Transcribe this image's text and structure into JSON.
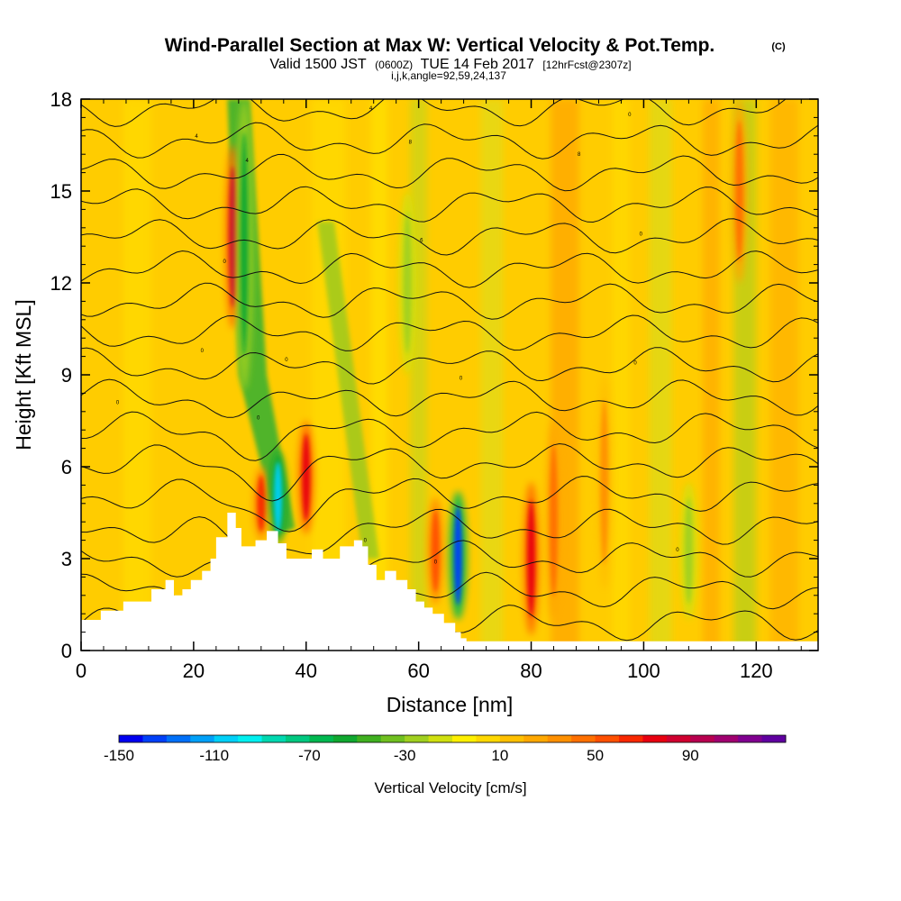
{
  "chart_data": {
    "type": "heatmap",
    "title": "Wind-Parallel Section at Max W: Vertical Velocity & Pot.Temp.",
    "copyright_mark": "(C)",
    "subtitle": {
      "valid_pre": "Valid 1500 JST",
      "valid_utc": "(0600Z)",
      "valid_post": "TUE 14 Feb 2017",
      "forecast": "[12hrFcst@2307z]"
    },
    "indices": "i,j,k,angle=92,59,24,137",
    "xlabel": "Distance [nm]",
    "ylabel": "Height [Kft MSL]",
    "xlim": [
      0,
      131
    ],
    "ylim": [
      0,
      18
    ],
    "xticks": [
      0,
      20,
      40,
      60,
      80,
      100,
      120
    ],
    "xtick_labels": [
      "0",
      "20",
      "40",
      "60",
      "80",
      "100",
      "120"
    ],
    "yticks": [
      0,
      3,
      6,
      9,
      12,
      15,
      18
    ],
    "ytick_labels": [
      "0",
      "3",
      "6",
      "9",
      "12",
      "15",
      "18"
    ],
    "colorbar": {
      "label": "Vertical Velocity [cm/s]",
      "range": [
        -150,
        130
      ],
      "step": 10,
      "tick_labels": [
        "-150",
        "-110",
        "-70",
        "-30",
        "10",
        "50",
        "90"
      ],
      "colors": [
        "#0000f0",
        "#0040f8",
        "#0070f8",
        "#00a0f8",
        "#00d0f8",
        "#00f0f0",
        "#00d8b0",
        "#00c880",
        "#00b850",
        "#10a830",
        "#40b020",
        "#70c020",
        "#a0d020",
        "#d0e010",
        "#fff000",
        "#ffd800",
        "#ffc000",
        "#ffa800",
        "#ff9000",
        "#ff7000",
        "#ff5000",
        "#f82800",
        "#e80010",
        "#d00030",
        "#b80050",
        "#a00070",
        "#800090",
        "#6000a0"
      ]
    },
    "grid": false,
    "legend": "none",
    "terrain_profile": {
      "x": [
        0,
        3.5,
        7.5,
        12.5,
        15,
        16.5,
        18,
        19.5,
        21.5,
        23,
        24,
        26,
        27.5,
        28.5,
        31,
        33,
        35,
        36.5,
        38.5,
        41,
        43,
        46,
        48.5,
        50,
        51,
        52.5,
        54,
        56,
        58,
        59.5,
        61,
        62.5,
        64.5,
        66.5,
        67.5,
        68.5,
        131
      ],
      "height_kft": [
        1.0,
        1.3,
        1.6,
        2.0,
        2.3,
        1.8,
        2.0,
        2.3,
        2.6,
        3.0,
        3.7,
        4.5,
        4.0,
        3.4,
        3.6,
        3.9,
        3.5,
        3.0,
        3.0,
        3.3,
        3.0,
        3.4,
        3.6,
        3.4,
        2.8,
        2.3,
        2.6,
        2.3,
        2.0,
        1.6,
        1.4,
        1.2,
        0.9,
        0.6,
        0.4,
        0.3,
        0.3
      ]
    },
    "updraft_cores": [
      {
        "x": 27,
        "ytop": 16.5,
        "ybot": 10.5,
        "w": 80
      },
      {
        "x": 40,
        "ytop": 7.5,
        "ybot": 3.8,
        "w": 70
      },
      {
        "x": 32,
        "ytop": 6.0,
        "ybot": 3.6,
        "w": 60
      },
      {
        "x": 80,
        "ytop": 5.5,
        "ybot": 0.5,
        "w": 70
      },
      {
        "x": 84,
        "ytop": 7.5,
        "ybot": 1.0,
        "w": 45
      },
      {
        "x": 63,
        "ytop": 5.0,
        "ybot": 1.5,
        "w": 50
      },
      {
        "x": 117,
        "ytop": 18,
        "ybot": 12,
        "w": 40
      },
      {
        "x": 93,
        "ytop": 9,
        "ybot": 2,
        "w": 30
      }
    ],
    "downdraft_cores": [
      {
        "x": 35,
        "ytop": 6.5,
        "ybot": 3.5,
        "w": -110
      },
      {
        "x": 67,
        "ytop": 5.2,
        "ybot": 1.0,
        "w": -140
      },
      {
        "x": 29,
        "ytop": 18,
        "ybot": 8.5,
        "w": -60
      },
      {
        "x": 58,
        "ytop": 15,
        "ybot": 9,
        "w": -30
      },
      {
        "x": 108,
        "ytop": 5.5,
        "ybot": 1.0,
        "w": -25
      }
    ],
    "theta_contours": {
      "label_positions": [
        {
          "x": 21.5,
          "y": 9.8,
          "label": "0"
        },
        {
          "x": 6.5,
          "y": 8.1,
          "label": "0"
        },
        {
          "x": 36.5,
          "y": 9.5,
          "label": "0"
        },
        {
          "x": 31.5,
          "y": 7.6,
          "label": "0"
        },
        {
          "x": 25.5,
          "y": 12.7,
          "label": "0"
        },
        {
          "x": 20.5,
          "y": 16.8,
          "label": "4"
        },
        {
          "x": 29.5,
          "y": 16.0,
          "label": "4"
        },
        {
          "x": 51.5,
          "y": 17.7,
          "label": "4"
        },
        {
          "x": 58.5,
          "y": 16.6,
          "label": "8"
        },
        {
          "x": 60.5,
          "y": 13.4,
          "label": "6"
        },
        {
          "x": 88.5,
          "y": 16.2,
          "label": "8"
        },
        {
          "x": 97.5,
          "y": 17.5,
          "label": "0"
        },
        {
          "x": 99.5,
          "y": 13.6,
          "label": "0"
        },
        {
          "x": 98.5,
          "y": 9.4,
          "label": "0"
        },
        {
          "x": 67.5,
          "y": 8.9,
          "label": "0"
        },
        {
          "x": 50.5,
          "y": 3.6,
          "label": "0"
        },
        {
          "x": 63,
          "y": 2.9,
          "label": "0"
        },
        {
          "x": 106,
          "y": 3.3,
          "label": "0"
        }
      ]
    }
  }
}
